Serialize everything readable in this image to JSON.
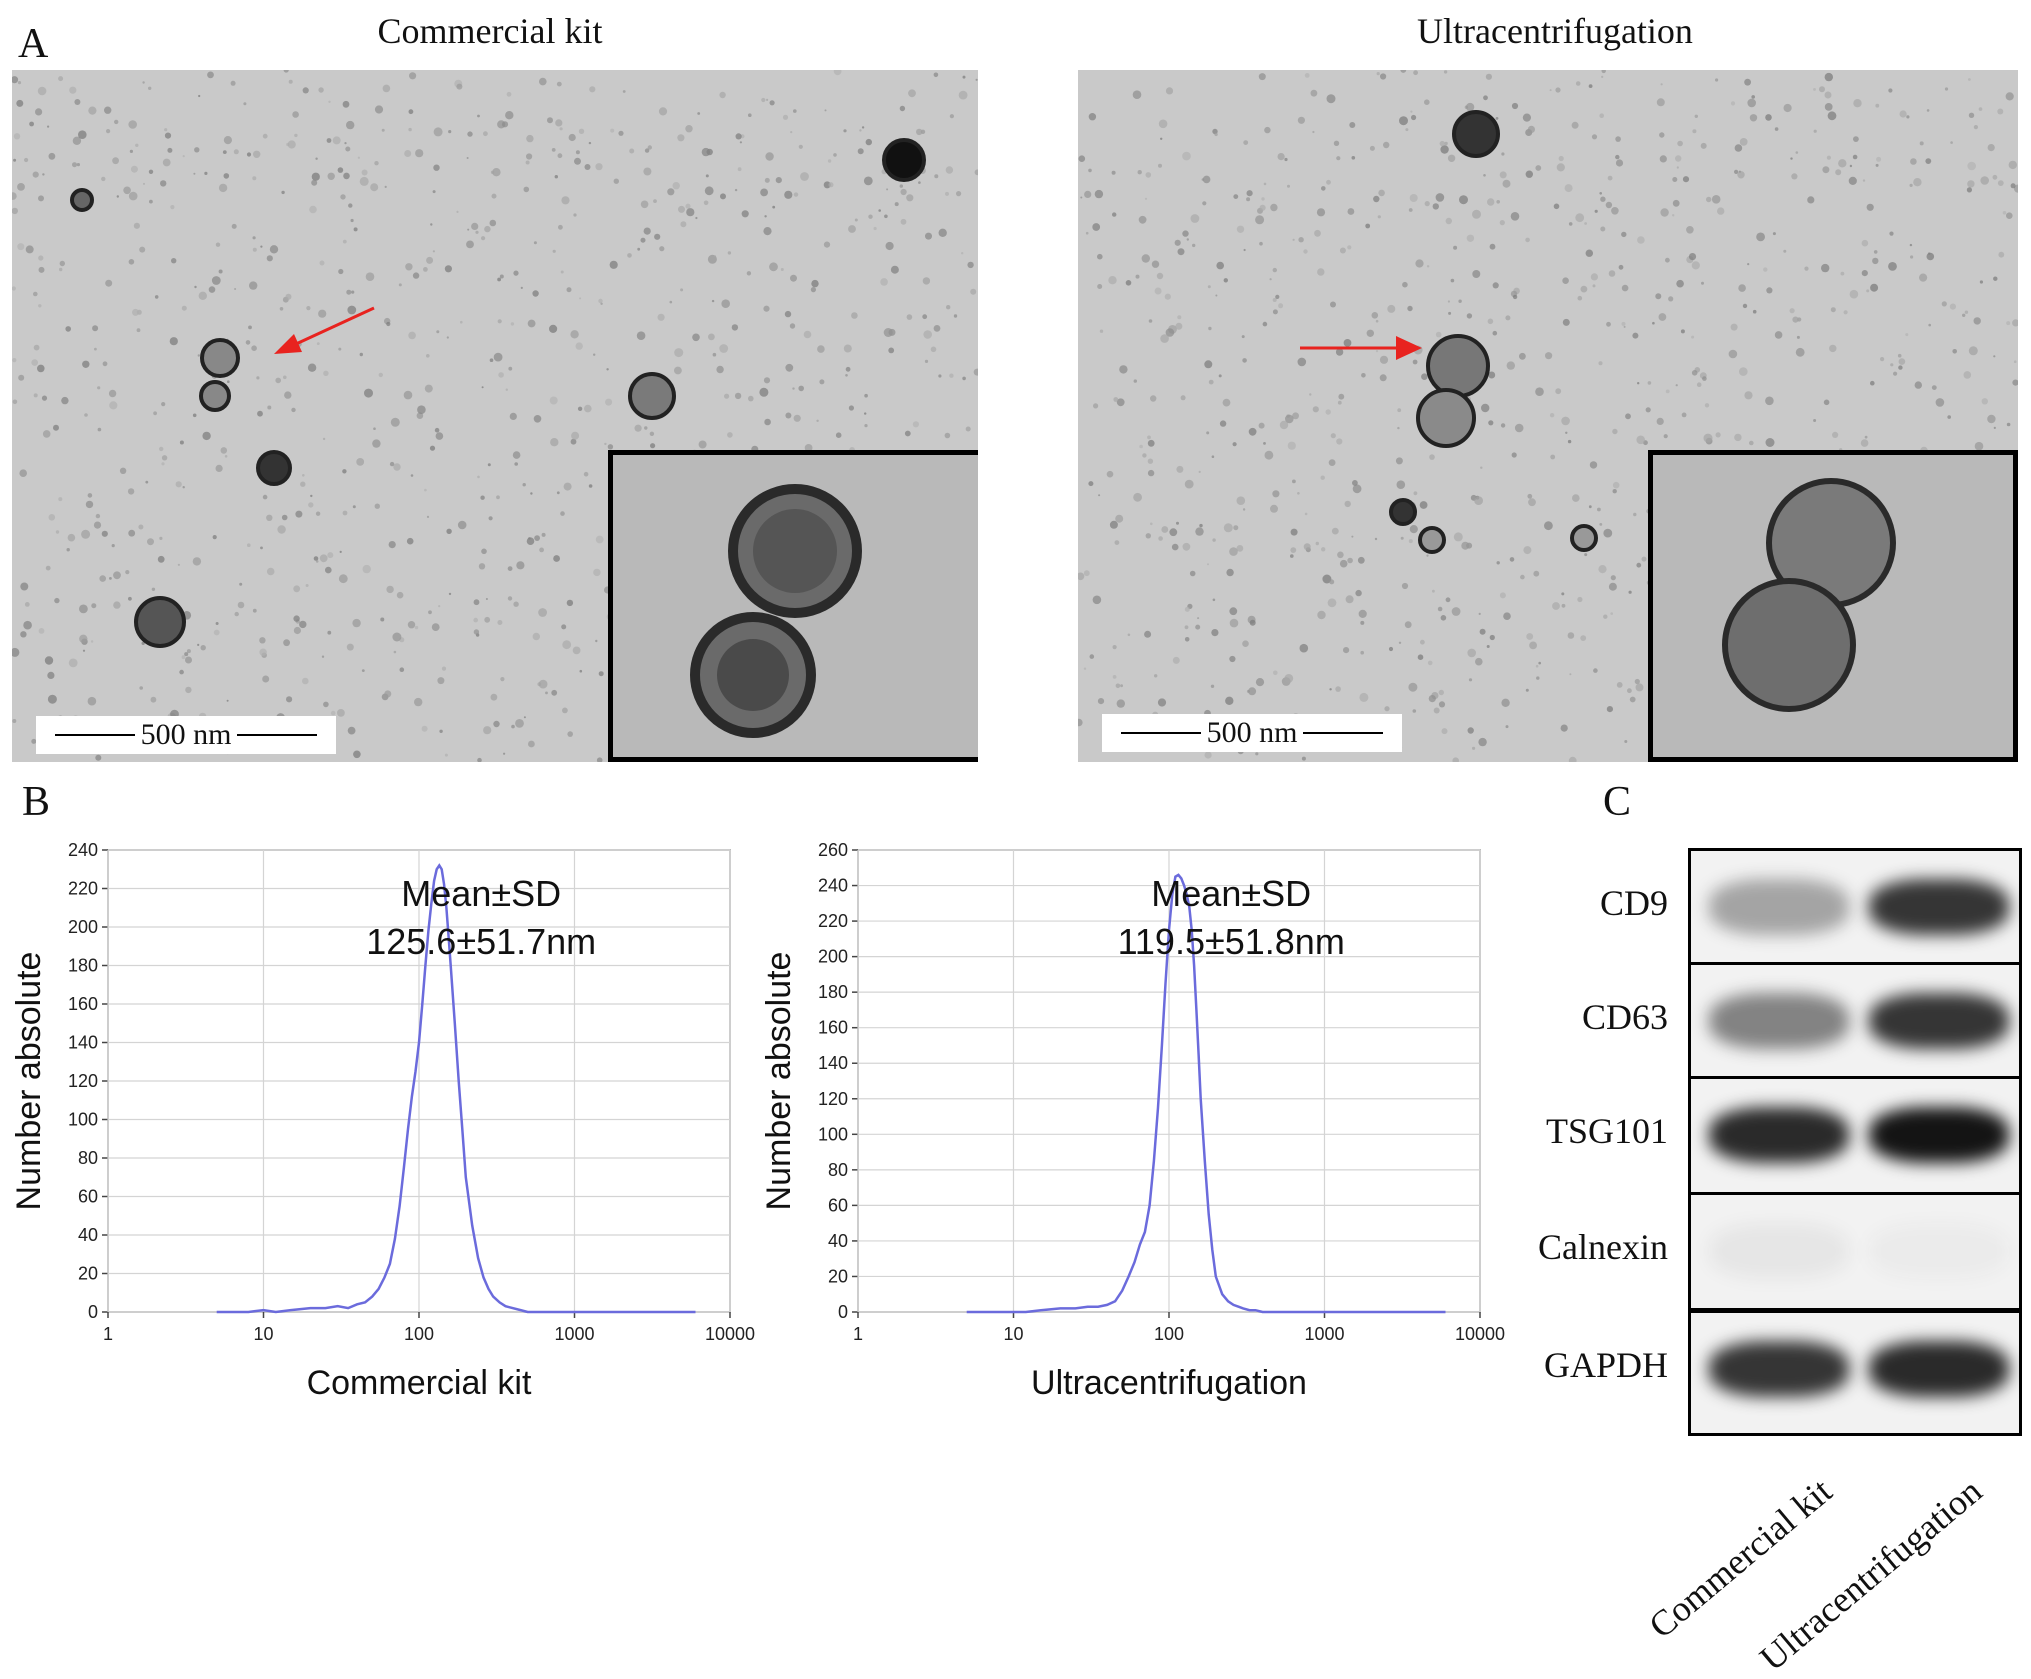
{
  "panels": {
    "a": "A",
    "b": "B",
    "c": "C"
  },
  "tem": {
    "left_title": "Commercial kit",
    "right_title": "Ultracentrifugation",
    "scale_left": "500 nm",
    "scale_right": "500 nm",
    "arrow_color": "#e8231f"
  },
  "chart_data": [
    {
      "type": "line",
      "xscale": "log",
      "xlim": [
        1,
        10000
      ],
      "ylim": [
        0,
        240
      ],
      "xticks": [
        "1",
        "10",
        "100",
        "1000",
        "10000"
      ],
      "yticks": [
        "0",
        "20",
        "40",
        "60",
        "80",
        "100",
        "120",
        "140",
        "160",
        "180",
        "200",
        "220",
        "240"
      ],
      "xlabel": "Commercial kit",
      "ylabel": "Number absolute",
      "annotation_line1": "Mean±SD",
      "annotation_line2": "125.6±51.7nm",
      "line_color": "#6b6bdc",
      "series": [
        {
          "x": [
            5,
            8,
            10,
            12,
            15,
            20,
            25,
            30,
            35,
            40,
            45,
            50,
            55,
            60,
            65,
            70,
            75,
            80,
            85,
            90,
            95,
            100,
            105,
            110,
            115,
            120,
            125,
            130,
            135,
            140,
            145,
            150,
            155,
            160,
            170,
            180,
            190,
            200,
            220,
            240,
            260,
            280,
            300,
            330,
            360,
            400,
            450,
            500,
            600,
            800,
            1000,
            2000,
            6000
          ],
          "y": [
            0,
            0,
            1,
            0,
            1,
            2,
            2,
            3,
            2,
            4,
            5,
            8,
            12,
            18,
            25,
            38,
            55,
            75,
            95,
            112,
            125,
            140,
            160,
            180,
            198,
            212,
            224,
            230,
            232,
            230,
            222,
            210,
            195,
            180,
            150,
            120,
            95,
            70,
            45,
            28,
            18,
            12,
            8,
            5,
            3,
            2,
            1,
            0,
            0,
            0,
            0,
            0,
            0
          ]
        }
      ]
    },
    {
      "type": "line",
      "xscale": "log",
      "xlim": [
        1,
        10000
      ],
      "ylim": [
        0,
        260
      ],
      "xticks": [
        "1",
        "10",
        "100",
        "1000",
        "10000"
      ],
      "yticks": [
        "0",
        "20",
        "40",
        "60",
        "80",
        "100",
        "120",
        "140",
        "160",
        "180",
        "200",
        "220",
        "240",
        "260"
      ],
      "xlabel": "Ultracentrifugation",
      "ylabel": "Number absolute",
      "annotation_line1": "Mean±SD",
      "annotation_line2": "119.5±51.8nm",
      "line_color": "#6b6bdc",
      "series": [
        {
          "x": [
            5,
            8,
            10,
            12,
            15,
            20,
            25,
            30,
            35,
            40,
            45,
            50,
            55,
            60,
            65,
            70,
            75,
            80,
            85,
            90,
            95,
            100,
            105,
            110,
            115,
            120,
            125,
            130,
            135,
            140,
            145,
            150,
            155,
            160,
            170,
            180,
            190,
            200,
            220,
            240,
            260,
            280,
            300,
            330,
            360,
            400,
            450,
            500,
            600,
            800,
            1000,
            2000,
            6000
          ],
          "y": [
            0,
            0,
            0,
            0,
            1,
            2,
            2,
            3,
            3,
            4,
            6,
            12,
            20,
            28,
            38,
            45,
            60,
            85,
            115,
            150,
            185,
            215,
            235,
            245,
            246,
            244,
            240,
            235,
            228,
            215,
            195,
            170,
            145,
            120,
            85,
            55,
            35,
            20,
            10,
            6,
            4,
            3,
            2,
            1,
            1,
            0,
            0,
            0,
            0,
            0,
            0,
            0,
            0
          ]
        }
      ]
    }
  ],
  "western_blot": {
    "rows": [
      "CD9",
      "CD63",
      "TSG101",
      "Calnexin",
      "GAPDH"
    ],
    "lanes": [
      "Commercial kit",
      "Ultracentrifugation"
    ],
    "band_intensity": [
      [
        0.35,
        0.85
      ],
      [
        0.5,
        0.85
      ],
      [
        0.9,
        1.0
      ],
      [
        0.05,
        0.03
      ],
      [
        0.85,
        0.9
      ]
    ]
  }
}
